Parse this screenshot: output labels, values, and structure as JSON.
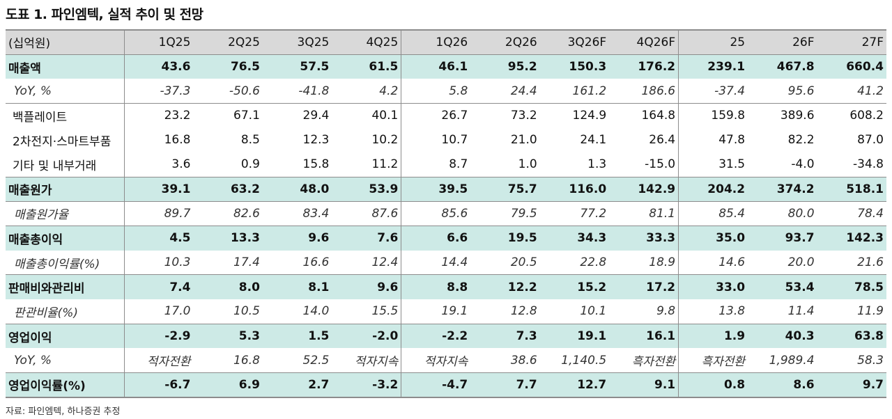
{
  "title": "도표 1. 파인엠텍, 실적 추이 및 전망",
  "unit": "(십억원)",
  "columns": [
    "1Q25",
    "2Q25",
    "3Q25",
    "4Q25",
    "1Q26",
    "2Q26",
    "3Q26F",
    "4Q26F",
    "25",
    "26F",
    "27F"
  ],
  "rows": [
    {
      "label": "매출액",
      "type": "main",
      "values": [
        "43.6",
        "76.5",
        "57.5",
        "61.5",
        "46.1",
        "95.2",
        "150.3",
        "176.2",
        "239.1",
        "467.8",
        "660.4"
      ]
    },
    {
      "label": "YoY, %",
      "type": "sub",
      "values": [
        "-37.3",
        "-50.6",
        "-41.8",
        "4.2",
        "5.8",
        "24.4",
        "161.2",
        "186.6",
        "-37.4",
        "95.6",
        "41.2"
      ]
    },
    {
      "label": "백플레이트",
      "type": "item",
      "values": [
        "23.2",
        "67.1",
        "29.4",
        "40.1",
        "26.7",
        "73.2",
        "124.9",
        "164.8",
        "159.8",
        "389.6",
        "608.2"
      ]
    },
    {
      "label": "2차전지·스마트부품",
      "type": "item",
      "values": [
        "16.8",
        "8.5",
        "12.3",
        "10.2",
        "10.7",
        "21.0",
        "24.1",
        "26.4",
        "47.8",
        "82.2",
        "87.0"
      ]
    },
    {
      "label": "기타 및 내부거래",
      "type": "item",
      "values": [
        "3.6",
        "0.9",
        "15.8",
        "11.2",
        "8.7",
        "1.0",
        "1.3",
        "-15.0",
        "31.5",
        "-4.0",
        "-34.8"
      ]
    },
    {
      "label": "매출원가",
      "type": "main",
      "values": [
        "39.1",
        "63.2",
        "48.0",
        "53.9",
        "39.5",
        "75.7",
        "116.0",
        "142.9",
        "204.2",
        "374.2",
        "518.1"
      ]
    },
    {
      "label": "매출원가율",
      "type": "sub",
      "values": [
        "89.7",
        "82.6",
        "83.4",
        "87.6",
        "85.6",
        "79.5",
        "77.2",
        "81.1",
        "85.4",
        "80.0",
        "78.4"
      ]
    },
    {
      "label": "매출총이익",
      "type": "main",
      "values": [
        "4.5",
        "13.3",
        "9.6",
        "7.6",
        "6.6",
        "19.5",
        "34.3",
        "33.3",
        "35.0",
        "93.7",
        "142.3"
      ]
    },
    {
      "label": "매출총이익률(%)",
      "type": "sub",
      "values": [
        "10.3",
        "17.4",
        "16.6",
        "12.4",
        "14.4",
        "20.5",
        "22.8",
        "18.9",
        "14.6",
        "20.0",
        "21.6"
      ]
    },
    {
      "label": "판매비와관리비",
      "type": "main",
      "values": [
        "7.4",
        "8.0",
        "8.1",
        "9.6",
        "8.8",
        "12.2",
        "15.2",
        "17.2",
        "33.0",
        "53.4",
        "78.5"
      ]
    },
    {
      "label": "판관비율(%)",
      "type": "sub",
      "values": [
        "17.0",
        "10.5",
        "14.0",
        "15.5",
        "19.1",
        "12.8",
        "10.1",
        "9.8",
        "13.8",
        "11.4",
        "11.9"
      ]
    },
    {
      "label": "영업이익",
      "type": "main",
      "values": [
        "-2.9",
        "5.3",
        "1.5",
        "-2.0",
        "-2.2",
        "7.3",
        "19.1",
        "16.1",
        "1.9",
        "40.3",
        "63.8"
      ]
    },
    {
      "label": "YoY, %",
      "type": "sub",
      "values": [
        "적자전환",
        "16.8",
        "52.5",
        "적자지속",
        "적자지속",
        "38.6",
        "1,140.5",
        "흑자전환",
        "흑자전환",
        "1,989.4",
        "58.3"
      ]
    },
    {
      "label": "영업이익률(%)",
      "type": "main",
      "values": [
        "-6.7",
        "6.9",
        "2.7",
        "-3.2",
        "-4.7",
        "7.7",
        "12.7",
        "9.1",
        "0.8",
        "8.6",
        "9.7"
      ]
    }
  ],
  "source": "자료: 파인엠텍, 하나증권 추정",
  "colors": {
    "highlight": "#cdeae6",
    "header": "#d9d9d9",
    "rule": "#8c8c8c"
  }
}
